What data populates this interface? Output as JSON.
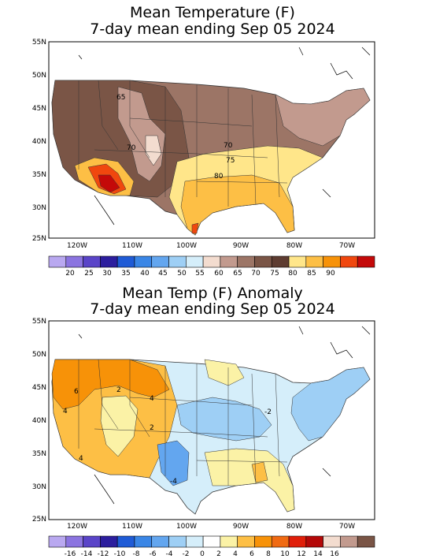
{
  "panels": [
    {
      "title_line1": "Mean Temperature (F)",
      "title_line2": "7-day mean ending Sep 05 2024",
      "lat_labels": [
        "55N",
        "50N",
        "45N",
        "40N",
        "35N",
        "30N",
        "25N"
      ],
      "lon_labels": [
        "120W",
        "110W",
        "100W",
        "90W",
        "80W",
        "70W"
      ],
      "contour_labels": [
        "65",
        "70",
        "70",
        "75",
        "80"
      ],
      "legend_ticks": [
        "20",
        "25",
        "30",
        "35",
        "40",
        "45",
        "50",
        "55",
        "60",
        "65",
        "70",
        "75",
        "80",
        "85",
        "90"
      ],
      "legend_colors": [
        "#b9a8f0",
        "#8b74e0",
        "#5a44c8",
        "#2c1e9e",
        "#1f5bd6",
        "#3a86e6",
        "#63a6ef",
        "#9ecff5",
        "#d5eefa",
        "#f3dccf",
        "#c29a8e",
        "#9c7566",
        "#7a5546",
        "#5e3c31",
        "#ffe68a",
        "#fdbf45",
        "#f79208",
        "#f0470e",
        "#c40909"
      ]
    },
    {
      "title_line1": "Mean Temp (F) Anomaly",
      "title_line2": "7-day mean ending Sep 05 2024",
      "lat_labels": [
        "55N",
        "50N",
        "45N",
        "40N",
        "35N",
        "30N",
        "25N"
      ],
      "lon_labels": [
        "120W",
        "110W",
        "100W",
        "90W",
        "80W",
        "70W"
      ],
      "contour_labels": [
        "6",
        "2",
        "4",
        "4",
        "2",
        "-4",
        "4",
        "-2"
      ],
      "legend_ticks": [
        "-16",
        "-14",
        "-12",
        "-10",
        "-8",
        "-6",
        "-4",
        "-2",
        "0",
        "2",
        "4",
        "6",
        "8",
        "10",
        "12",
        "14",
        "16"
      ],
      "legend_colors": [
        "#b9a8f0",
        "#8b74e0",
        "#5a44c8",
        "#2c1e9e",
        "#1f5bd6",
        "#3a86e6",
        "#63a6ef",
        "#9ecff5",
        "#d5eefa",
        "#ffffff",
        "#fbf2a6",
        "#fdbf45",
        "#f79208",
        "#f06a12",
        "#e01f0a",
        "#b40808",
        "#f3dccf",
        "#c29a8e",
        "#7a5546"
      ]
    }
  ]
}
